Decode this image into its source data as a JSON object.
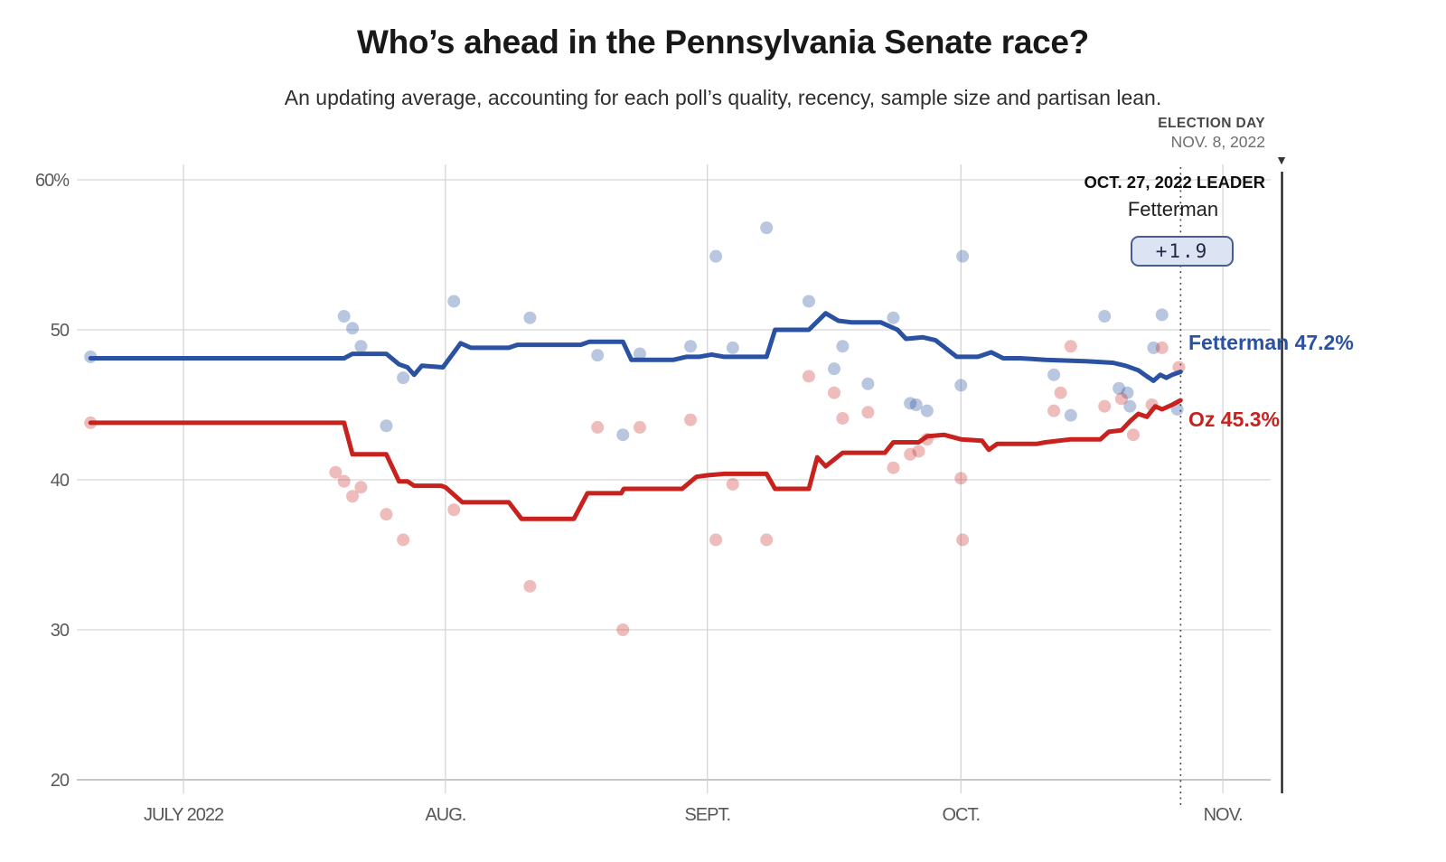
{
  "header": {
    "title": "Who’s ahead in the Pennsylvania Senate race?",
    "subtitle": "An updating average, accounting for each poll’s quality, recency, sample size and partisan lean."
  },
  "annotations": {
    "election_day": {
      "line1": "ELECTION DAY",
      "line2": "NOV. 8, 2022",
      "marker": "▼",
      "day": 141
    },
    "leader": {
      "title": "OCT. 27, 2022 LEADER",
      "name": "Fetterman",
      "margin": "+1.9",
      "day": 129
    },
    "end_labels": {
      "fetterman": "Fetterman 47.2%",
      "oz": "Oz 45.3%"
    }
  },
  "colors": {
    "fetterman": "#2b51a2",
    "oz": "#c8221e",
    "grid": "#d6d6d6",
    "axis": "#a8a8a8",
    "dashed_line": "#3c3c3c",
    "election_line": "#141414",
    "badge_fill": "#dce3f3",
    "badge_border": "#4a5c92"
  },
  "chart_data": {
    "type": "line",
    "title": "Who’s ahead in the Pennsylvania Senate race?",
    "x_axis": {
      "unit": "days since epoch",
      "epoch": "2022-06-20",
      "range_days": [
        0,
        145
      ],
      "ticks": [
        {
          "label": "JULY 2022",
          "day": 11
        },
        {
          "label": "AUG.",
          "day": 42
        },
        {
          "label": "SEPT.",
          "day": 73
        },
        {
          "label": "OCT.",
          "day": 103
        },
        {
          "label": "NOV.",
          "day": 134
        }
      ]
    },
    "y_axis": {
      "range": [
        20,
        60
      ],
      "ticks": [
        {
          "label": "60%",
          "value": 60
        },
        {
          "label": "50",
          "value": 50
        },
        {
          "label": "40",
          "value": 40
        },
        {
          "label": "30",
          "value": 30
        },
        {
          "label": "20",
          "value": 20
        }
      ]
    },
    "reference_lines": {
      "leader_day": 129,
      "election_day": 141
    },
    "series": [
      {
        "name": "Fetterman",
        "final_value": 47.2,
        "points": [
          [
            0,
            48.1
          ],
          [
            30,
            48.1
          ],
          [
            31,
            48.4
          ],
          [
            35,
            48.4
          ],
          [
            36.5,
            47.7
          ],
          [
            37.5,
            47.5
          ],
          [
            38.3,
            47.0
          ],
          [
            39.2,
            47.6
          ],
          [
            41.7,
            47.5
          ],
          [
            43.8,
            49.1
          ],
          [
            45,
            48.8
          ],
          [
            49.5,
            48.8
          ],
          [
            50.5,
            49.0
          ],
          [
            58,
            49.0
          ],
          [
            59,
            49.2
          ],
          [
            63,
            49.2
          ],
          [
            64,
            48.0
          ],
          [
            69,
            48.0
          ],
          [
            70.5,
            48.2
          ],
          [
            72,
            48.2
          ],
          [
            73.5,
            48.35
          ],
          [
            75,
            48.2
          ],
          [
            80,
            48.2
          ],
          [
            81,
            50.0
          ],
          [
            85,
            50.0
          ],
          [
            87,
            51.1
          ],
          [
            88.5,
            50.6
          ],
          [
            90,
            50.5
          ],
          [
            93.5,
            50.5
          ],
          [
            95.5,
            50.0
          ],
          [
            96.5,
            49.4
          ],
          [
            98.5,
            49.5
          ],
          [
            100,
            49.3
          ],
          [
            102.5,
            48.2
          ],
          [
            105,
            48.2
          ],
          [
            106.6,
            48.5
          ],
          [
            108,
            48.1
          ],
          [
            110,
            48.1
          ],
          [
            113,
            48.0
          ],
          [
            118,
            47.9
          ],
          [
            121,
            47.8
          ],
          [
            122.5,
            47.6
          ],
          [
            124,
            47.3
          ],
          [
            125,
            46.9
          ],
          [
            125.8,
            46.6
          ],
          [
            126.6,
            47.0
          ],
          [
            127.3,
            46.8
          ],
          [
            128,
            47.0
          ],
          [
            129,
            47.2
          ]
        ]
      },
      {
        "name": "Oz",
        "final_value": 45.3,
        "points": [
          [
            0,
            43.8
          ],
          [
            30,
            43.8
          ],
          [
            31,
            41.7
          ],
          [
            35,
            41.7
          ],
          [
            36.5,
            39.9
          ],
          [
            37.5,
            39.9
          ],
          [
            38.3,
            39.6
          ],
          [
            41.5,
            39.6
          ],
          [
            42,
            39.5
          ],
          [
            44,
            38.5
          ],
          [
            49.5,
            38.5
          ],
          [
            51,
            37.4
          ],
          [
            57.2,
            37.4
          ],
          [
            58.8,
            39.1
          ],
          [
            62.8,
            39.1
          ],
          [
            63.1,
            39.4
          ],
          [
            70,
            39.4
          ],
          [
            71.7,
            40.2
          ],
          [
            73,
            40.3
          ],
          [
            75,
            40.4
          ],
          [
            80,
            40.4
          ],
          [
            81,
            39.4
          ],
          [
            85,
            39.4
          ],
          [
            86,
            41.5
          ],
          [
            87,
            40.9
          ],
          [
            89,
            41.8
          ],
          [
            94,
            41.8
          ],
          [
            95,
            42.5
          ],
          [
            98,
            42.5
          ],
          [
            99,
            42.9
          ],
          [
            101,
            43.0
          ],
          [
            103,
            42.7
          ],
          [
            105.5,
            42.6
          ],
          [
            106.3,
            42.0
          ],
          [
            107.3,
            42.4
          ],
          [
            112,
            42.4
          ],
          [
            113,
            42.5
          ],
          [
            116,
            42.7
          ],
          [
            119.5,
            42.7
          ],
          [
            120.5,
            43.2
          ],
          [
            122,
            43.3
          ],
          [
            123,
            43.9
          ],
          [
            124,
            44.4
          ],
          [
            125,
            44.2
          ],
          [
            126,
            44.9
          ],
          [
            126.8,
            44.7
          ],
          [
            128,
            45.0
          ],
          [
            129,
            45.3
          ]
        ]
      }
    ],
    "polls": [
      {
        "party": "Fetterman",
        "points": [
          [
            0,
            48.2
          ],
          [
            30,
            50.9
          ],
          [
            31,
            50.1
          ],
          [
            32,
            48.9
          ],
          [
            35,
            43.6
          ],
          [
            37,
            46.8
          ],
          [
            43,
            51.9
          ],
          [
            52,
            50.8
          ],
          [
            60,
            48.3
          ],
          [
            63,
            43.0
          ],
          [
            65,
            48.4
          ],
          [
            71,
            48.9
          ],
          [
            74,
            54.9
          ],
          [
            76,
            48.8
          ],
          [
            80,
            56.8
          ],
          [
            85,
            51.9
          ],
          [
            88,
            47.4
          ],
          [
            89,
            48.9
          ],
          [
            92,
            46.4
          ],
          [
            95,
            50.8
          ],
          [
            97,
            45.1
          ],
          [
            97.7,
            45.0
          ],
          [
            99,
            44.6
          ],
          [
            103,
            46.3
          ],
          [
            103.2,
            54.9
          ],
          [
            114,
            47.0
          ],
          [
            116,
            44.3
          ],
          [
            120,
            50.9
          ],
          [
            121.7,
            46.1
          ],
          [
            122.7,
            45.8
          ],
          [
            123,
            44.9
          ],
          [
            125.8,
            48.8
          ],
          [
            126.8,
            51.0
          ],
          [
            128.6,
            44.7
          ]
        ]
      },
      {
        "party": "Oz",
        "points": [
          [
            0,
            43.8
          ],
          [
            29,
            40.5
          ],
          [
            30,
            39.9
          ],
          [
            31,
            38.9
          ],
          [
            32,
            39.5
          ],
          [
            35,
            37.7
          ],
          [
            37,
            36.0
          ],
          [
            43,
            38.0
          ],
          [
            52,
            32.9
          ],
          [
            60,
            43.5
          ],
          [
            63,
            30.0
          ],
          [
            65,
            43.5
          ],
          [
            71,
            44.0
          ],
          [
            74,
            36.0
          ],
          [
            76,
            39.7
          ],
          [
            80,
            36.0
          ],
          [
            85,
            46.9
          ],
          [
            88,
            45.8
          ],
          [
            89,
            44.1
          ],
          [
            92,
            44.5
          ],
          [
            95,
            40.8
          ],
          [
            97,
            41.7
          ],
          [
            98,
            41.9
          ],
          [
            99,
            42.7
          ],
          [
            103,
            40.1
          ],
          [
            103.2,
            36.0
          ],
          [
            114,
            44.6
          ],
          [
            114.8,
            45.8
          ],
          [
            116,
            48.9
          ],
          [
            120,
            44.9
          ],
          [
            122,
            45.4
          ],
          [
            123.4,
            43.0
          ],
          [
            125.6,
            45.0
          ],
          [
            126.8,
            48.8
          ],
          [
            128.8,
            47.5
          ]
        ]
      }
    ],
    "legend_position": "right-of-line-ends",
    "grid": true
  }
}
